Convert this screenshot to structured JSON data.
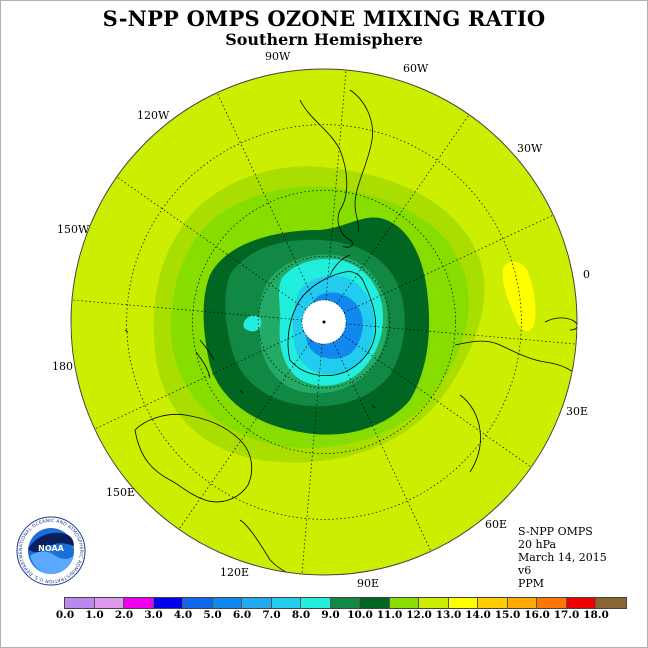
{
  "title": "S-NPP OMPS OZONE MIXING RATIO",
  "subtitle": "Southern Hemisphere",
  "longitude_labels": [
    "90W",
    "60W",
    "120W",
    "30W",
    "150W",
    "0",
    "180",
    "30E",
    "150E",
    "60E",
    "120E",
    "90E"
  ],
  "info": {
    "instrument": "S-NPP OMPS",
    "level": "20 hPa",
    "date": "March 14, 2015",
    "version": "v6",
    "units": "PPM"
  },
  "logo": {
    "name": "NOAA",
    "ring_text": "NATIONAL OCEANIC AND ATMOSPHERIC ADMINISTRATION U.S. DEPARTMENT OF COMMERCE"
  },
  "colorbar": {
    "labels": [
      "0.0",
      "1.0",
      "2.0",
      "3.0",
      "4.0",
      "5.0",
      "6.0",
      "7.0",
      "8.0",
      "9.0",
      "10.0",
      "11.0",
      "12.0",
      "13.0",
      "14.0",
      "15.0",
      "16.0",
      "17.0",
      "18.0"
    ],
    "colors": [
      "#bb88ee",
      "#dd99ee",
      "#ee00ee",
      "#0000ee",
      "#1166ee",
      "#1188ee",
      "#22aaee",
      "#22ccee",
      "#22eedd",
      "#118844",
      "#006622",
      "#88dd00",
      "#ccee00",
      "#ffff00",
      "#ffcc00",
      "#ffaa00",
      "#ff7700",
      "#ee0000",
      "#886633"
    ]
  },
  "colors": {
    "background_field": "#ccee00",
    "ring_11": "#aadd00",
    "ring_10": "#88dd00",
    "ring_9": "#118844",
    "ring_8": "#006622",
    "ring_7": "#22aa66",
    "ring_6": "#22eedd",
    "ring_5": "#22ccee",
    "ring_4": "#1188ee",
    "yellow_patch": "#ffff00",
    "pole_fill": "#ffffff"
  }
}
